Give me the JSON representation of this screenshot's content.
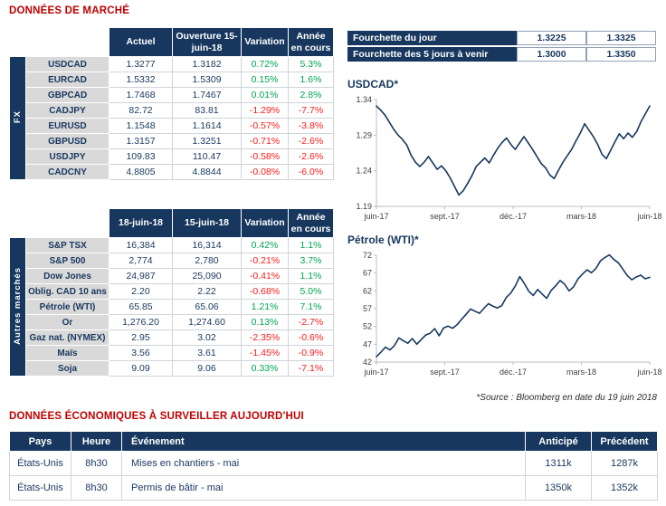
{
  "page": {
    "title_market": "DONNÉES DE MARCHÉ",
    "title_econ": "DONNÉES ÉCONOMIQUES À SURVEILLER AUJOURD'HUI",
    "source_note": "*Source : Bloomberg en date du 19 juin 2018"
  },
  "colors": {
    "navy": "#17375E",
    "title_red": "#C00000",
    "positive": "#00A550",
    "negative": "#FF1A1A",
    "label_bg": "#D9D9D9"
  },
  "fx_table": {
    "group_label": "FX",
    "headers": [
      "Actuel",
      "Ouverture 15-juin-18",
      "Variation",
      "Année en cours"
    ],
    "rows": [
      {
        "label": "USDCAD",
        "v1": "1.3277",
        "v2": "1.3182",
        "variation": "0.72%",
        "ytd": "5.3%"
      },
      {
        "label": "EURCAD",
        "v1": "1.5332",
        "v2": "1.5309",
        "variation": "0.15%",
        "ytd": "1.6%"
      },
      {
        "label": "GBPCAD",
        "v1": "1.7468",
        "v2": "1.7467",
        "variation": "0.01%",
        "ytd": "2.8%"
      },
      {
        "label": "CADJPY",
        "v1": "82.72",
        "v2": "83.81",
        "variation": "-1.29%",
        "ytd": "-7.7%"
      },
      {
        "label": "EURUSD",
        "v1": "1.1548",
        "v2": "1.1614",
        "variation": "-0.57%",
        "ytd": "-3.8%"
      },
      {
        "label": "GBPUSD",
        "v1": "1.3157",
        "v2": "1.3251",
        "variation": "-0.71%",
        "ytd": "-2.6%"
      },
      {
        "label": "USDJPY",
        "v1": "109.83",
        "v2": "110.47",
        "variation": "-0.58%",
        "ytd": "-2.6%"
      },
      {
        "label": "CADCNY",
        "v1": "4.8805",
        "v2": "4.8844",
        "variation": "-0.08%",
        "ytd": "-6.0%"
      }
    ]
  },
  "markets_table": {
    "group_label": "Autres marchés",
    "headers": [
      "18-juin-18",
      "15-juin-18",
      "Variation",
      "Année en cours"
    ],
    "rows": [
      {
        "label": "S&P TSX",
        "v1": "16,384",
        "v2": "16,314",
        "variation": "0.42%",
        "ytd": "1.1%"
      },
      {
        "label": "S&P 500",
        "v1": "2,774",
        "v2": "2,780",
        "variation": "-0.21%",
        "ytd": "3.7%"
      },
      {
        "label": "Dow Jones",
        "v1": "24,987",
        "v2": "25,090",
        "variation": "-0.41%",
        "ytd": "1.1%"
      },
      {
        "label": "Oblig. CAD 10 ans",
        "v1": "2.20",
        "v2": "2.22",
        "variation": "-0.68%",
        "ytd": "5.0%"
      },
      {
        "label": "Pétrole (WTI)",
        "v1": "65.85",
        "v2": "65.06",
        "variation": "1.21%",
        "ytd": "7.1%"
      },
      {
        "label": "Or",
        "v1": "1,276.20",
        "v2": "1,274.60",
        "variation": "0.13%",
        "ytd": "-2.7%"
      },
      {
        "label": "Gaz nat. (NYMEX)",
        "v1": "2.95",
        "v2": "3.02",
        "variation": "-2.35%",
        "ytd": "-0.6%"
      },
      {
        "label": "Maïs",
        "v1": "3.56",
        "v2": "3.61",
        "variation": "-1.45%",
        "ytd": "-0.9%"
      },
      {
        "label": "Soja",
        "v1": "9.09",
        "v2": "9.06",
        "variation": "0.33%",
        "ytd": "-7.1%"
      }
    ]
  },
  "ranges": {
    "rows": [
      {
        "label": "Fourchette du jour",
        "low": "1.3225",
        "high": "1.3325"
      },
      {
        "label": "Fourchette des 5 jours à venir",
        "low": "1.3000",
        "high": "1.3350"
      }
    ]
  },
  "chart_data": [
    {
      "type": "line",
      "title": "USDCAD*",
      "xlabel": "",
      "ylabel": "",
      "x_ticks": [
        "juin-17",
        "sept.-17",
        "déc.-17",
        "mars-18",
        "juin-18"
      ],
      "y_ticks": [
        1.19,
        1.24,
        1.29,
        1.34
      ],
      "y_decimals": 2,
      "ylim": [
        1.19,
        1.34
      ],
      "grid": false,
      "legend": false,
      "values": [
        1.331,
        1.325,
        1.318,
        1.308,
        1.298,
        1.29,
        1.284,
        1.276,
        1.262,
        1.252,
        1.246,
        1.252,
        1.26,
        1.251,
        1.242,
        1.247,
        1.24,
        1.23,
        1.218,
        1.206,
        1.212,
        1.222,
        1.233,
        1.246,
        1.252,
        1.258,
        1.251,
        1.262,
        1.272,
        1.28,
        1.286,
        1.277,
        1.27,
        1.279,
        1.288,
        1.279,
        1.27,
        1.26,
        1.25,
        1.244,
        1.234,
        1.229,
        1.241,
        1.252,
        1.261,
        1.27,
        1.282,
        1.293,
        1.306,
        1.297,
        1.288,
        1.277,
        1.263,
        1.257,
        1.269,
        1.281,
        1.292,
        1.285,
        1.293,
        1.287,
        1.295,
        1.309,
        1.32,
        1.331
      ]
    },
    {
      "type": "line",
      "title": "Pétrole (WTI)*",
      "xlabel": "",
      "ylabel": "",
      "x_ticks": [
        "juin-17",
        "sept.-17",
        "déc.-17",
        "mars-18",
        "juin-18"
      ],
      "y_ticks": [
        42,
        47,
        52,
        57,
        62,
        67,
        72
      ],
      "y_decimals": 0,
      "ylim": [
        42,
        72
      ],
      "grid": false,
      "legend": false,
      "values": [
        43.5,
        44.8,
        46.2,
        45.4,
        46.6,
        48.8,
        48.0,
        47.3,
        48.6,
        47.0,
        48.3,
        49.6,
        50.1,
        51.4,
        49.4,
        51.6,
        52.1,
        51.5,
        52.5,
        54.0,
        55.4,
        56.9,
        56.3,
        55.7,
        57.1,
        58.4,
        57.7,
        57.2,
        57.9,
        60.2,
        61.4,
        63.4,
        66.0,
        64.1,
        61.9,
        60.7,
        62.4,
        61.1,
        59.9,
        62.1,
        63.4,
        64.9,
        63.9,
        62.0,
        63.1,
        65.4,
        66.7,
        67.9,
        67.1,
        68.3,
        70.4,
        71.4,
        72.1,
        70.8,
        69.9,
        68.1,
        66.3,
        65.1,
        65.9,
        66.4,
        65.4,
        65.8
      ]
    }
  ],
  "econ_table": {
    "headers": [
      "Pays",
      "Heure",
      "Événement",
      "Anticipé",
      "Précédent"
    ],
    "rows": [
      {
        "country": "États-Unis",
        "time": "8h30",
        "event": "Mises en chantiers - mai",
        "anticipated": "1311k",
        "previous": "1287k"
      },
      {
        "country": "États-Unis",
        "time": "8h30",
        "event": "Permis de bâtir - mai",
        "anticipated": "1350k",
        "previous": "1352k"
      }
    ]
  }
}
